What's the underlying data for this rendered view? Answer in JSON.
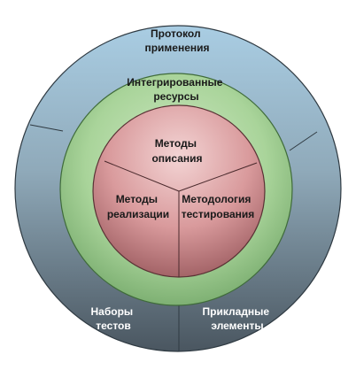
{
  "diagram": {
    "outer_ring": {
      "top": {
        "line1": "Протокол",
        "line2": "применения"
      },
      "bottom_left": {
        "line1": "Наборы",
        "line2": "тестов"
      },
      "bottom_right": {
        "line1": "Прикладные",
        "line2": "элементы"
      }
    },
    "middle_ring": {
      "line1": "Интегрированные",
      "line2": "ресурсы"
    },
    "inner_circle": {
      "top": {
        "line1": "Методы",
        "line2": "описания"
      },
      "left": {
        "line1": "Методы",
        "line2": "реализации"
      },
      "right": {
        "line1": "Методология",
        "line2": "тестирования"
      }
    }
  }
}
